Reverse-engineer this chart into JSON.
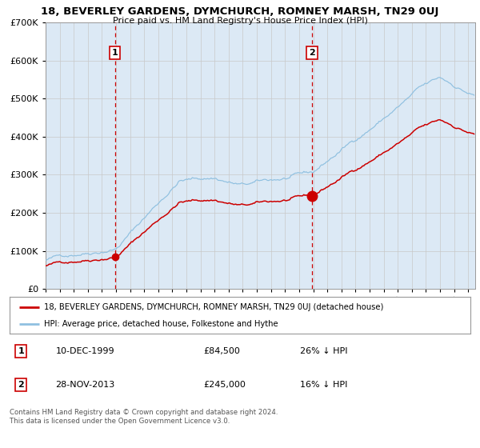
{
  "title": "18, BEVERLEY GARDENS, DYMCHURCH, ROMNEY MARSH, TN29 0UJ",
  "subtitle": "Price paid vs. HM Land Registry's House Price Index (HPI)",
  "legend_line1": "18, BEVERLEY GARDENS, DYMCHURCH, ROMNEY MARSH, TN29 0UJ (detached house)",
  "legend_line2": "HPI: Average price, detached house, Folkestone and Hythe",
  "footer1": "Contains HM Land Registry data © Crown copyright and database right 2024.",
  "footer2": "This data is licensed under the Open Government Licence v3.0.",
  "annotation1_date": "10-DEC-1999",
  "annotation1_price": "£84,500",
  "annotation1_hpi": "26% ↓ HPI",
  "annotation2_date": "28-NOV-2013",
  "annotation2_price": "£245,000",
  "annotation2_hpi": "16% ↓ HPI",
  "sale1_year": 1999.917,
  "sale1_price": 84500,
  "sale2_year": 2013.917,
  "sale2_price": 245000,
  "ylim_max": 700000,
  "xlim_start": 1995.0,
  "xlim_end": 2025.5,
  "bg_color": "#dce9f5",
  "plot_bg": "#ffffff",
  "hpi_color": "#8fc0e0",
  "price_color": "#cc0000",
  "vline_color": "#cc0000",
  "grid_color": "#c8c8c8",
  "annotation_box_color": "#cc0000"
}
